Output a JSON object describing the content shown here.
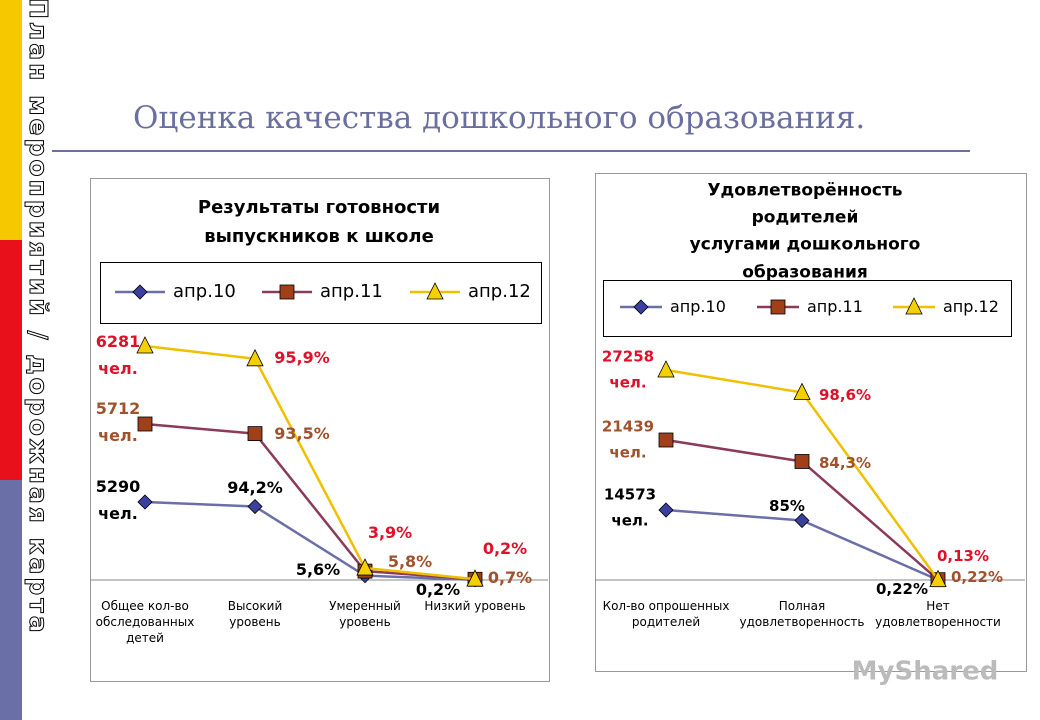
{
  "side_text": "План мероприятий / дорожная карта",
  "title": "Оценка качества дошкольного образования.",
  "watermark": "MyShared",
  "chart_data": [
    {
      "type": "line",
      "stacked": true,
      "title": "Результаты  готовности\nвыпускников  к школе",
      "categories": [
        "Общее кол-во\nобследованных\nдетей",
        "Высокий\nуровень",
        "Умеренный\nуровень",
        "Низкий уровень"
      ],
      "ylim": [
        0,
        300
      ],
      "series": [
        {
          "name": "апр.10",
          "color": "#6b6fa8",
          "marker_color": "#3b3f9e",
          "label_color": "#000000",
          "marker": "diamond",
          "values": [
            100,
            94.2,
            5.6,
            0.2
          ],
          "value_labels": [
            null,
            "94,2%",
            "5,6%",
            "0,2%"
          ],
          "annotation": "5290\nчел."
        },
        {
          "name": "апр.11",
          "color": "#8b3a5a",
          "marker_color": "#a0401a",
          "label_color": "#a0522d",
          "marker": "square",
          "values": [
            100,
            93.5,
            5.8,
            0.7
          ],
          "value_labels": [
            null,
            "93,5%",
            "5,8%",
            "0,7%"
          ],
          "annotation": "5712\nчел."
        },
        {
          "name": "апр.12",
          "color": "#f0c000",
          "marker_color": "#f5d000",
          "label_color": "#e0102a",
          "marker": "triangle",
          "values": [
            100,
            95.9,
            3.9,
            0.2
          ],
          "value_labels": [
            null,
            "95,9%",
            "3,9%",
            "0,2%"
          ],
          "annotation": "6281\nчел."
        }
      ]
    },
    {
      "type": "line",
      "stacked": true,
      "title": "Удовлетворённость родителей\nуслугами дошкольного\nобразования",
      "categories": [
        "Кол-во опрошенных\nродителей",
        "Полная\nудовлетворенность",
        "Нет\nудовлетворенности"
      ],
      "ylim": [
        0,
        300
      ],
      "series": [
        {
          "name": "апр.10",
          "color": "#6b6fa8",
          "marker_color": "#3b3f9e",
          "label_color": "#000000",
          "marker": "diamond",
          "values": [
            100,
            85,
            0.22
          ],
          "value_labels": [
            null,
            "85%",
            "0,22%"
          ],
          "annotation": "14573\nчел."
        },
        {
          "name": "апр.11",
          "color": "#8b3a5a",
          "marker_color": "#a0401a",
          "label_color": "#a0522d",
          "marker": "square",
          "values": [
            100,
            84.3,
            0.22
          ],
          "value_labels": [
            null,
            "84,3%",
            "0,22%"
          ],
          "annotation": "21439\nчел."
        },
        {
          "name": "апр.12",
          "color": "#f0c000",
          "marker_color": "#f5d000",
          "label_color": "#e0102a",
          "marker": "triangle",
          "values": [
            100,
            98.6,
            0.13
          ],
          "value_labels": [
            null,
            "98,6%",
            "0,13%"
          ],
          "annotation": "27258\nчел."
        }
      ]
    }
  ]
}
